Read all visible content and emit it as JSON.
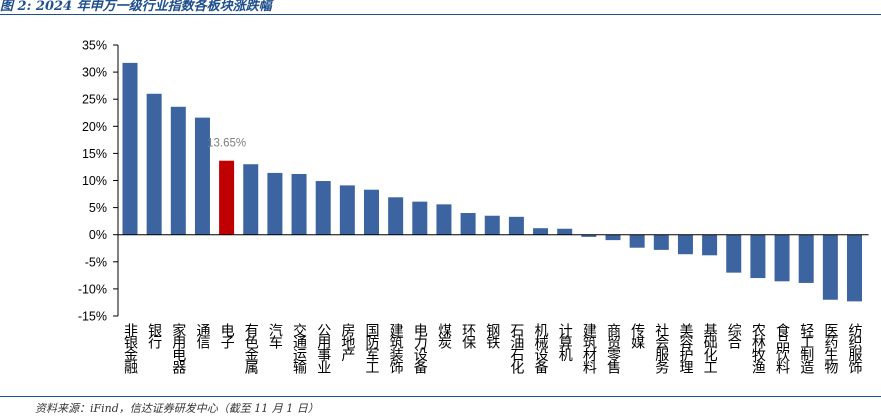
{
  "title": "图 2:  2024 年申万一级行业指数各板块涨跌幅",
  "source": "资料来源：iFind，信达证券研发中心（截至 11 月 1 日）",
  "chart_data": {
    "type": "bar",
    "title": "图 2:  2024 年申万一级行业指数各板块涨跌幅",
    "xlabel": "",
    "ylabel": "",
    "ylim": [
      -15,
      35
    ],
    "yticks": [
      35,
      30,
      25,
      20,
      15,
      10,
      5,
      0,
      -5,
      -10,
      -15
    ],
    "ytick_labels": [
      "35%",
      "30%",
      "25%",
      "20%",
      "15%",
      "10%",
      "5%",
      "0%",
      "-5%",
      "-10%",
      "-15%"
    ],
    "grid": false,
    "categories": [
      "非银金融",
      "银行",
      "家用电器",
      "通信",
      "电子",
      "有色金属",
      "汽车",
      "交通运输",
      "公用事业",
      "房地产",
      "国防军工",
      "建筑装饰",
      "电力设备",
      "煤炭",
      "环保",
      "钢铁",
      "石油石化",
      "机械设备",
      "计算机",
      "建筑材料",
      "商贸零售",
      "传媒",
      "社会服务",
      "美容护理",
      "基础化工",
      "综合",
      "农林牧渔",
      "食品饮料",
      "轻工制造",
      "医药生物",
      "纺织服饰"
    ],
    "values": [
      31.7,
      26.0,
      23.6,
      21.6,
      13.65,
      13.0,
      11.4,
      11.2,
      9.9,
      9.1,
      8.3,
      6.9,
      6.1,
      5.6,
      4.0,
      3.5,
      3.3,
      1.2,
      1.1,
      -0.4,
      -1.0,
      -2.4,
      -2.8,
      -3.6,
      -3.8,
      -7.0,
      -8.0,
      -8.6,
      -8.9,
      -12.0,
      -12.3
    ],
    "highlight": {
      "category": "电子",
      "label": "13.65%",
      "color": "#c00000"
    },
    "bar_color": "#3c64a0",
    "label_color": "#7f7f7f"
  }
}
